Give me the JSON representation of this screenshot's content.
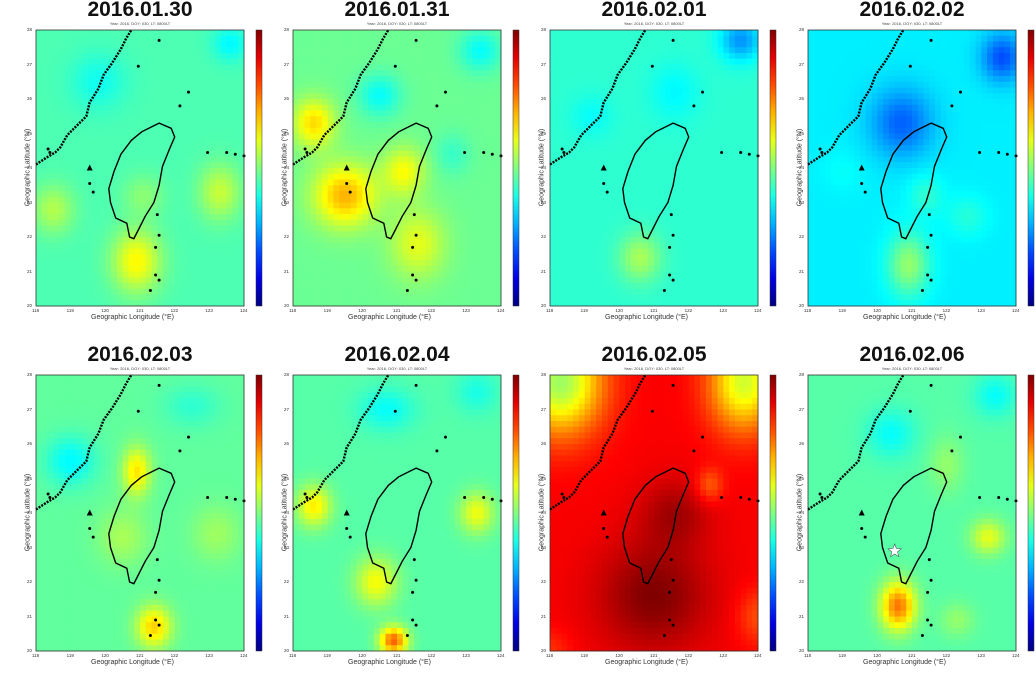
{
  "chart_data": {
    "type": "heatmap",
    "colormap": "jet",
    "panel_subtitle": "Year: 2016, DOY: 030, LT: 0800LT",
    "xlabel": "Geographic Longitude (°E)",
    "ylabel": "Geographic Latitude (°N)",
    "xlim": [
      118,
      124
    ],
    "ylim": [
      20,
      28
    ],
    "xticks": [
      "118",
      "119",
      "120",
      "121",
      "122",
      "123",
      "124"
    ],
    "yticks": [
      "28",
      "27",
      "26",
      "25",
      "24",
      "23",
      "22",
      "21",
      "20"
    ],
    "grid": false,
    "colorbar": "right of each panel",
    "marker": {
      "panel": "2016.02.06",
      "symbol": "star",
      "color": "#ffffff",
      "lon": 120.5,
      "lat": 22.9
    },
    "panels": [
      {
        "title": "2016.01.30",
        "base": 0.45,
        "blobs": [
          [
            120.9,
            21.3,
            0.7,
            0.9,
            0.18
          ],
          [
            123.3,
            23.3,
            0.6,
            0.8,
            0.12
          ],
          [
            118.5,
            22.8,
            0.6,
            0.7,
            0.1
          ],
          [
            119.8,
            26.5,
            0.8,
            0.8,
            -0.06
          ],
          [
            123.6,
            27.6,
            0.5,
            0.5,
            -0.08
          ],
          [
            121.1,
            23.2,
            0.6,
            0.6,
            0.06
          ]
        ]
      },
      {
        "title": "2016.01.31",
        "base": 0.48,
        "blobs": [
          [
            119.5,
            23.2,
            0.9,
            0.9,
            0.22
          ],
          [
            118.6,
            25.3,
            0.6,
            0.7,
            0.18
          ],
          [
            121.2,
            23.9,
            0.6,
            0.7,
            0.14
          ],
          [
            121.6,
            21.8,
            0.8,
            1.0,
            0.12
          ],
          [
            120.5,
            26.1,
            0.6,
            0.6,
            -0.1
          ],
          [
            123.4,
            27.4,
            0.6,
            0.6,
            -0.1
          ],
          [
            122.6,
            24.4,
            0.5,
            0.6,
            -0.05
          ]
        ]
      },
      {
        "title": "2016.02.01",
        "base": 0.42,
        "blobs": [
          [
            120.6,
            21.4,
            0.6,
            0.7,
            0.12
          ],
          [
            123.5,
            27.7,
            0.6,
            0.6,
            -0.15
          ],
          [
            121.6,
            26.2,
            0.7,
            0.8,
            -0.05
          ],
          [
            119.2,
            25.5,
            0.6,
            0.6,
            -0.04
          ]
        ]
      },
      {
        "title": "2016.02.02",
        "base": 0.36,
        "blobs": [
          [
            120.7,
            25.3,
            0.9,
            1.0,
            -0.14
          ],
          [
            123.6,
            27.2,
            0.6,
            0.7,
            -0.16
          ],
          [
            120.9,
            21.2,
            0.6,
            0.9,
            0.16
          ],
          [
            121.4,
            23.2,
            0.5,
            0.6,
            0.06
          ],
          [
            122.6,
            22.6,
            0.6,
            0.6,
            0.05
          ],
          [
            119.0,
            23.9,
            0.6,
            0.6,
            0.02
          ]
        ]
      },
      {
        "title": "2016.02.03",
        "base": 0.47,
        "blobs": [
          [
            120.9,
            25.2,
            0.4,
            0.7,
            0.18
          ],
          [
            121.4,
            20.7,
            0.5,
            0.6,
            0.2
          ],
          [
            119.0,
            25.5,
            0.7,
            0.7,
            -0.1
          ],
          [
            120.5,
            23.3,
            0.7,
            0.8,
            0.07
          ],
          [
            123.2,
            23.4,
            0.7,
            0.8,
            0.06
          ],
          [
            122.5,
            27.1,
            0.8,
            0.6,
            -0.05
          ]
        ]
      },
      {
        "title": "2016.02.04",
        "base": 0.46,
        "blobs": [
          [
            120.9,
            20.3,
            0.4,
            0.4,
            0.32
          ],
          [
            120.4,
            22.0,
            0.6,
            0.7,
            0.16
          ],
          [
            118.6,
            24.2,
            0.5,
            0.6,
            0.18
          ],
          [
            123.3,
            24.0,
            0.5,
            0.6,
            0.15
          ],
          [
            120.7,
            27.0,
            0.8,
            0.6,
            -0.08
          ],
          [
            123.3,
            27.5,
            0.6,
            0.6,
            -0.06
          ]
        ]
      },
      {
        "title": "2016.02.05",
        "base": 0.88,
        "blobs": [
          [
            121.0,
            21.6,
            1.6,
            1.6,
            0.12
          ],
          [
            121.6,
            24.0,
            1.0,
            1.0,
            0.08
          ],
          [
            118.3,
            27.8,
            1.2,
            1.5,
            -0.35
          ],
          [
            123.6,
            27.8,
            1.0,
            1.4,
            -0.3
          ],
          [
            124.0,
            21.0,
            0.6,
            0.8,
            -0.08
          ],
          [
            118.0,
            20.0,
            0.6,
            0.6,
            -0.05
          ],
          [
            122.6,
            24.8,
            0.4,
            0.5,
            -0.1
          ]
        ]
      },
      {
        "title": "2016.02.06",
        "base": 0.46,
        "blobs": [
          [
            120.6,
            21.3,
            0.5,
            0.7,
            0.3
          ],
          [
            120.4,
            26.3,
            0.7,
            0.7,
            -0.08
          ],
          [
            122.0,
            25.4,
            0.5,
            0.8,
            0.06
          ],
          [
            123.2,
            23.3,
            0.5,
            0.5,
            0.14
          ],
          [
            123.4,
            27.4,
            0.6,
            0.6,
            -0.08
          ],
          [
            122.3,
            20.9,
            0.5,
            0.5,
            0.06
          ]
        ]
      }
    ]
  }
}
